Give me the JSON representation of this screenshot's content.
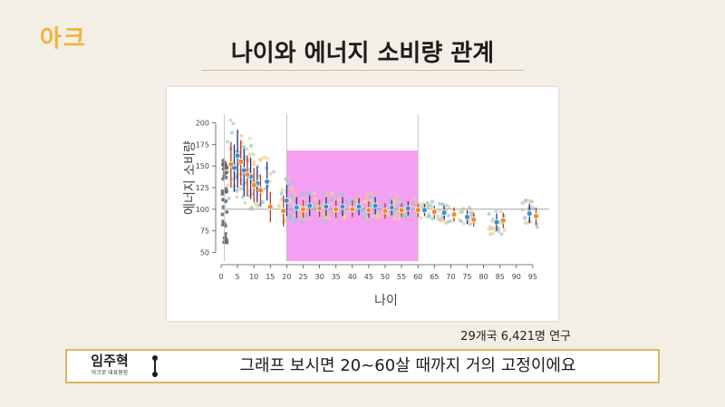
{
  "logo": "아크",
  "title": "나이와 에너지 소비량 관계",
  "source": "29개국 6,421명 연구",
  "caption": {
    "speaker_name": "임주혁",
    "speaker_role": "아크로 대표원장",
    "text": "그래프 보시면 20~60살 때까지 거의 고정이에요"
  },
  "colors": {
    "highlight": "#f49af2",
    "blue_marker": "#3a93c9",
    "orange_marker": "#f08a2a",
    "whisker": "#2b2f7a",
    "accent": "#e0b461"
  },
  "chart_data": {
    "type": "scatter",
    "title": "",
    "xlabel": "나이",
    "ylabel": "에너지 소비량",
    "xlim": [
      0,
      100
    ],
    "ylim": [
      40,
      210
    ],
    "xticks": [
      0,
      5,
      10,
      15,
      20,
      25,
      30,
      35,
      40,
      45,
      50,
      55,
      60,
      65,
      70,
      75,
      80,
      85,
      90,
      95
    ],
    "yticks": [
      50,
      75,
      100,
      125,
      150,
      175,
      200
    ],
    "reference_line": 100,
    "vertical_lines": [
      1,
      20,
      60
    ],
    "highlight_range": {
      "x": [
        20,
        60
      ],
      "y": [
        40,
        168
      ]
    },
    "series": [
      {
        "marker": "blue",
        "points": [
          {
            "x": 4,
            "y": 148,
            "low": 120,
            "high": 175
          },
          {
            "x": 5,
            "y": 162,
            "low": 125,
            "high": 192
          },
          {
            "x": 7,
            "y": 145,
            "low": 115,
            "high": 170
          },
          {
            "x": 9,
            "y": 138,
            "low": 112,
            "high": 160
          },
          {
            "x": 11,
            "y": 130,
            "low": 108,
            "high": 150
          },
          {
            "x": 14,
            "y": 132,
            "low": 110,
            "high": 155
          },
          {
            "x": 20,
            "y": 110,
            "low": 92,
            "high": 128
          },
          {
            "x": 23,
            "y": 102,
            "low": 90,
            "high": 114
          },
          {
            "x": 27,
            "y": 104,
            "low": 92,
            "high": 116
          },
          {
            "x": 32,
            "y": 103,
            "low": 92,
            "high": 114
          },
          {
            "x": 37,
            "y": 103,
            "low": 92,
            "high": 114
          },
          {
            "x": 42,
            "y": 103,
            "low": 93,
            "high": 113
          },
          {
            "x": 47,
            "y": 104,
            "low": 94,
            "high": 114
          },
          {
            "x": 52,
            "y": 102,
            "low": 93,
            "high": 111
          },
          {
            "x": 57,
            "y": 101,
            "low": 93,
            "high": 109
          },
          {
            "x": 62,
            "y": 99,
            "low": 92,
            "high": 106
          },
          {
            "x": 68,
            "y": 96,
            "low": 88,
            "high": 104
          },
          {
            "x": 75,
            "y": 91,
            "low": 83,
            "high": 99
          },
          {
            "x": 84,
            "y": 85,
            "low": 75,
            "high": 95
          },
          {
            "x": 94,
            "y": 95,
            "low": 84,
            "high": 106
          }
        ]
      },
      {
        "marker": "orange",
        "points": [
          {
            "x": 3,
            "y": 152,
            "low": 125,
            "high": 178
          },
          {
            "x": 6,
            "y": 155,
            "low": 128,
            "high": 180
          },
          {
            "x": 8,
            "y": 140,
            "low": 115,
            "high": 162
          },
          {
            "x": 10,
            "y": 128,
            "low": 108,
            "high": 148
          },
          {
            "x": 12,
            "y": 122,
            "low": 104,
            "high": 140
          },
          {
            "x": 15,
            "y": 103,
            "low": 85,
            "high": 120
          },
          {
            "x": 19,
            "y": 98,
            "low": 80,
            "high": 116
          },
          {
            "x": 25,
            "y": 100,
            "low": 90,
            "high": 111
          },
          {
            "x": 30,
            "y": 101,
            "low": 91,
            "high": 111
          },
          {
            "x": 35,
            "y": 100,
            "low": 90,
            "high": 110
          },
          {
            "x": 40,
            "y": 100,
            "low": 91,
            "high": 110
          },
          {
            "x": 45,
            "y": 99,
            "low": 90,
            "high": 109
          },
          {
            "x": 50,
            "y": 98,
            "low": 89,
            "high": 107
          },
          {
            "x": 55,
            "y": 99,
            "low": 91,
            "high": 107
          },
          {
            "x": 60,
            "y": 99,
            "low": 91,
            "high": 106
          },
          {
            "x": 65,
            "y": 97,
            "low": 89,
            "high": 104
          },
          {
            "x": 71,
            "y": 94,
            "low": 86,
            "high": 102
          },
          {
            "x": 77,
            "y": 88,
            "low": 80,
            "high": 96
          },
          {
            "x": 86,
            "y": 87,
            "low": 78,
            "high": 96
          },
          {
            "x": 96,
            "y": 92,
            "low": 82,
            "high": 102
          }
        ]
      }
    ]
  }
}
